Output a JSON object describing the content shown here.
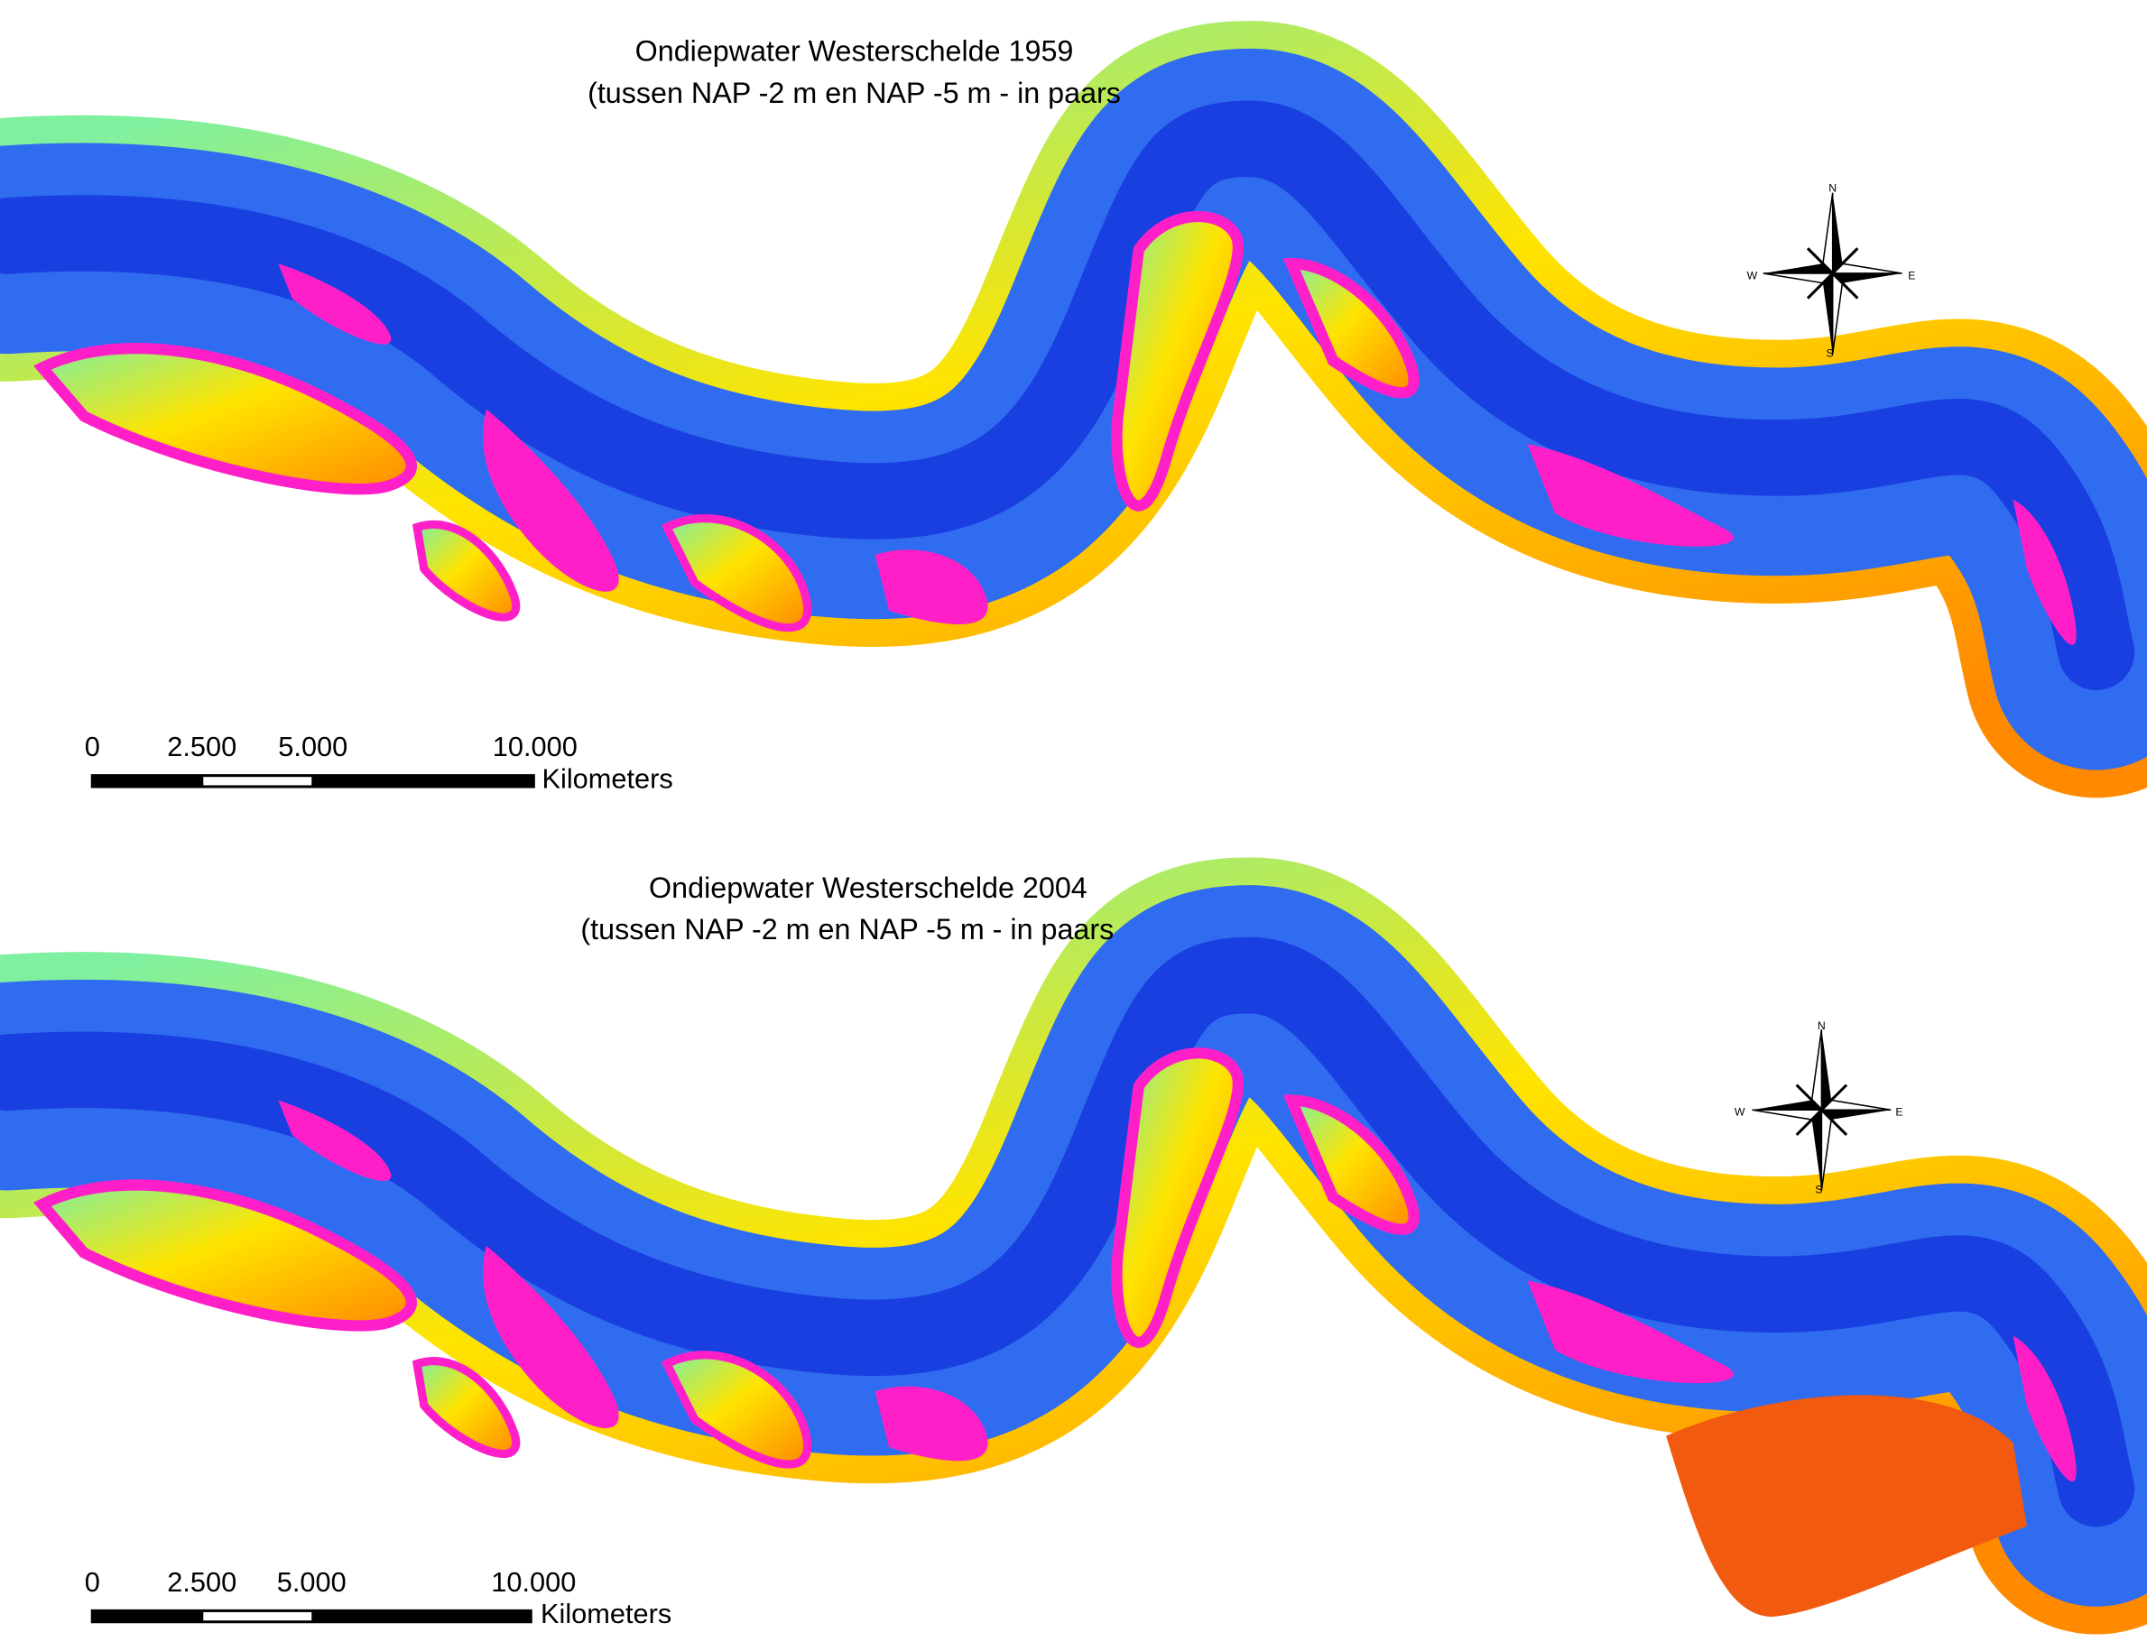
{
  "maps": [
    {
      "title": "Ondiepwater Westerschelde 1959",
      "subtitle": "(tussen NAP -2 m en NAP -5 m - in paars",
      "scale_labels": [
        "0",
        "2.500",
        "5.000",
        "10.000"
      ],
      "scale_unit": "Kilometers",
      "compass": {
        "north": "N",
        "east": "E",
        "south": "S",
        "west": "W"
      }
    },
    {
      "title": "Ondiepwater Westerschelde 2004",
      "subtitle": "(tussen NAP -2 m en NAP -5 m - in paars",
      "scale_labels": [
        "0",
        "2.500",
        "5.000",
        "10.000"
      ],
      "scale_unit": "Kilometers",
      "compass": {
        "north": "N",
        "east": "E",
        "south": "S",
        "west": "W"
      }
    }
  ]
}
